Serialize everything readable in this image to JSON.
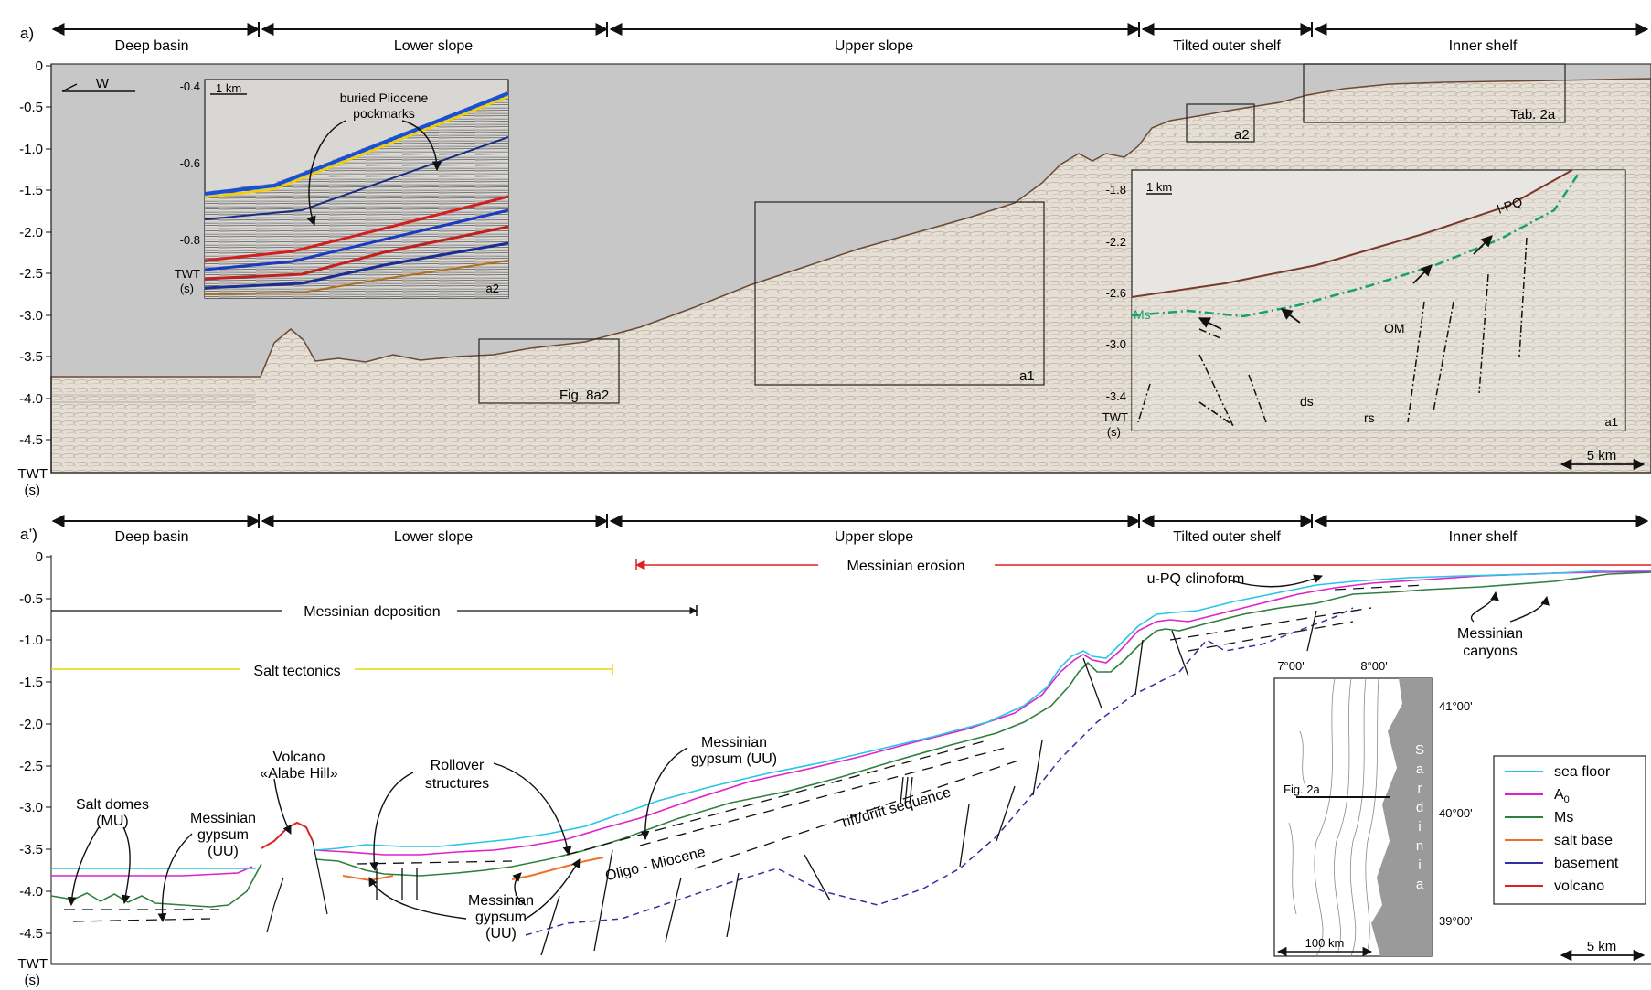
{
  "panel_a": {
    "letter": "a)",
    "zones": [
      "Deep basin",
      "Lower slope",
      "Upper slope",
      "Tilted outer shelf",
      "Inner shelf"
    ],
    "yticks": [
      "0",
      "-0.5",
      "-1.0",
      "-1.5",
      "-2.0",
      "-2.5",
      "-3.0",
      "-3.5",
      "-4.0",
      "-4.5"
    ],
    "ylabel_top": "TWT",
    "ylabel_bottom": "(s)",
    "west": "W",
    "scalebar": "5 km",
    "boxes": {
      "fig8a2": "Fig. 8a2",
      "a1": "a1",
      "a2": "a2",
      "tab2a": "Tab. 2a"
    },
    "inset_a2": {
      "scale": "1 km",
      "yticks": [
        "-0.4",
        "-0.6",
        "-0.8"
      ],
      "ylabel_top": "TWT",
      "ylabel_bottom": "(s)",
      "ann_line1": "buried Pliocene",
      "ann_line2": "pockmarks",
      "label": "a2"
    },
    "inset_a1": {
      "scale": "1 km",
      "yticks": [
        "-1.8",
        "-2.2",
        "-2.6",
        "-3.0",
        "-3.4"
      ],
      "ylabel_top": "TWT",
      "ylabel_bottom": "(s)",
      "ms": "Ms",
      "lpq": "l-PQ",
      "om": "OM",
      "ds": "ds",
      "rs": "rs",
      "label": "a1"
    }
  },
  "panel_b": {
    "letter": "a’)",
    "zones": [
      "Deep basin",
      "Lower slope",
      "Upper slope",
      "Tilted outer shelf",
      "Inner shelf"
    ],
    "yticks": [
      "0",
      "-0.5",
      "-1.0",
      "-1.5",
      "-2.0",
      "-2.5",
      "-3.0",
      "-3.5",
      "-4.0",
      "-4.5"
    ],
    "ylabel_top": "TWT",
    "ylabel_bottom": "(s)",
    "scalebar": "5 km",
    "range_messinian_erosion": "Messinian erosion",
    "range_messinian_deposition": "Messinian deposition",
    "range_salt_tectonics": "Salt tectonics",
    "annotations": {
      "salt_domes": [
        "Salt domes",
        "(MU)"
      ],
      "gypsum_left": [
        "Messinian",
        "gypsum",
        "(UU)"
      ],
      "volcano": [
        "Volcano",
        "«Alabe Hill»"
      ],
      "rollover": [
        "Rollover",
        "structures"
      ],
      "gypsum_mid": [
        "Messinian",
        "gypsum",
        "(UU)"
      ],
      "gypsum_upper": [
        "Messinian",
        "gypsum (UU)"
      ],
      "oligo": "Oligo - Miocene",
      "rift": "rift/drift sequence",
      "clinoform": "u-PQ clinoform",
      "canyons": [
        "Messinian",
        "canyons"
      ]
    },
    "legend": [
      {
        "label": "sea floor",
        "color": "#29c5e6"
      },
      {
        "label": "A",
        "sub": "0",
        "color": "#e020c8"
      },
      {
        "label": "Ms",
        "color": "#2f7f3f"
      },
      {
        "label": "salt base",
        "color": "#f0722a"
      },
      {
        "label": "basement",
        "color": "#3030a0"
      },
      {
        "label": "volcano",
        "color": "#e02020"
      }
    ],
    "map": {
      "lon_labels": [
        "7°00'",
        "8°00'"
      ],
      "lat_labels": [
        "41°00'",
        "40°00'",
        "39°00'"
      ],
      "island_letters": [
        "S",
        "a",
        "r",
        "d",
        "i",
        "n",
        "i",
        "a"
      ],
      "fig_label": "Fig. 2a",
      "scale": "100 km"
    }
  },
  "colors": {
    "seismic_bg": "#c7c7c7",
    "seismic_fill": "#e3ddd3",
    "sea_floor": "#29c5e6",
    "a0": "#e020c8",
    "ms": "#2f7f3f",
    "salt_base": "#f0722a",
    "basement": "#3030a0",
    "volcano": "#e02020",
    "erosion": "#e02020",
    "salt_range": "#e8d800"
  }
}
